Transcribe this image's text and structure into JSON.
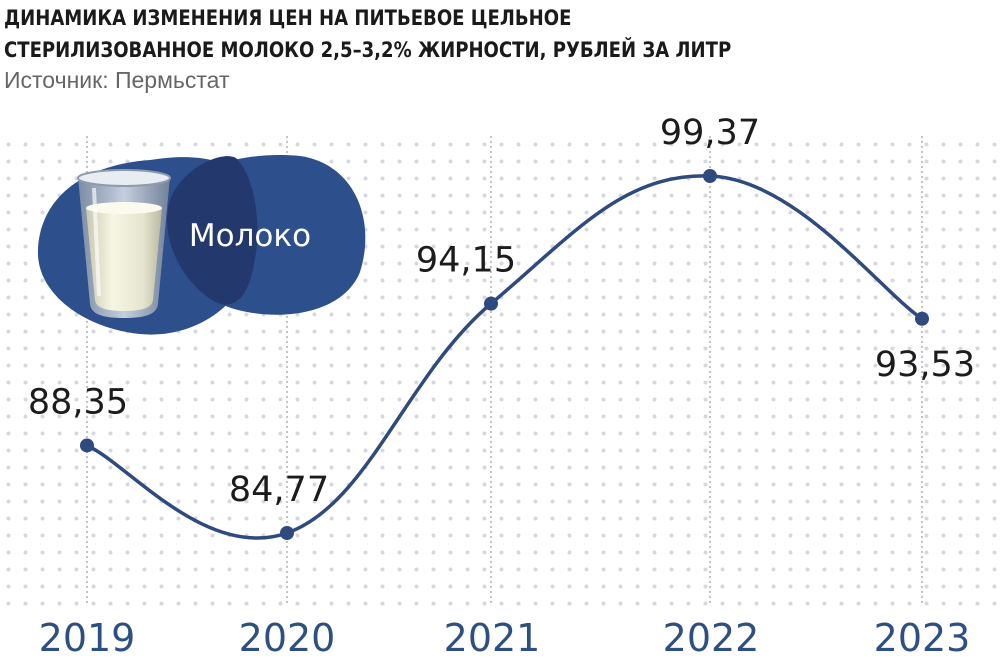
{
  "header": {
    "title_line1": "ДИНАМИКА ИЗМЕНЕНИЯ ЦЕН НА ПИТЬЕВОЕ ЦЕЛЬНОЕ",
    "title_line2": "СТЕРИЛИЗОВАННОЕ МОЛОКО 2,5–3,2% ЖИРНОСТИ, РУБЛЕЙ ЗА ЛИТР",
    "source": "Источник: Пермьстат"
  },
  "illustration": {
    "label": "Молоко",
    "icon": "milk-glass-icon"
  },
  "colors": {
    "line": "#2e4a7e",
    "point": "#2e4a7e",
    "year_text": "#2e4f82",
    "blob_dark": "#2d4f8c",
    "blob_darker": "#23386d",
    "dots": "#d5d9df",
    "guides": "#a9b0ba"
  },
  "chart_data": {
    "type": "line",
    "title": "ДИНАМИКА ИЗМЕНЕНИЯ ЦЕН НА ПИТЬЕВОЕ ЦЕЛЬНОЕ СТЕРИЛИЗОВАННОЕ МОЛОКО 2,5–3,2% ЖИРНОСТИ, РУБЛЕЙ ЗА ЛИТР",
    "categories": [
      "2019",
      "2020",
      "2021",
      "2022",
      "2023"
    ],
    "values": [
      88.35,
      84.77,
      94.15,
      99.37,
      93.53
    ],
    "value_labels": [
      "88,35",
      "84,77",
      "94,15",
      "99,37",
      "93,53"
    ],
    "label_positions": [
      "above",
      "above",
      "above",
      "above",
      "below"
    ],
    "smooth": true,
    "grid": false
  }
}
